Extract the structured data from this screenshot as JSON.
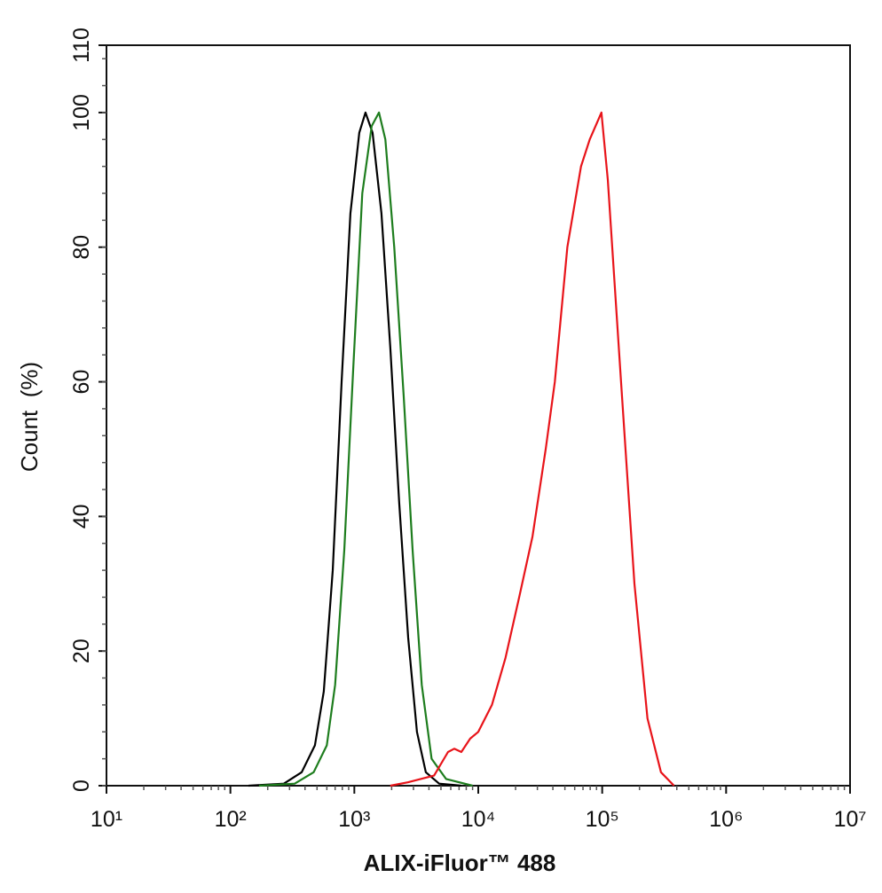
{
  "chart_data": {
    "type": "line",
    "x_label": "ALIX-iFluor™ 488",
    "y_label": "Count  (%)",
    "x_log": true,
    "xlim": [
      10,
      10000000
    ],
    "xticks": [
      {
        "value": 10,
        "label": "10¹"
      },
      {
        "value": 100,
        "label": "10²"
      },
      {
        "value": 1000,
        "label": "10³"
      },
      {
        "value": 10000,
        "label": "10⁴"
      },
      {
        "value": 100000,
        "label": "10⁵"
      },
      {
        "value": 1000000,
        "label": "10⁶"
      },
      {
        "value": 10000000,
        "label": "10⁷"
      }
    ],
    "ylim": [
      0,
      110
    ],
    "yticks": [
      0,
      20,
      40,
      60,
      80,
      100,
      110
    ],
    "series": [
      {
        "color": "#000000",
        "x": [
          140,
          270,
          376,
          481,
          567,
          669,
          789,
          930,
          1096,
          1230,
          1403,
          1656,
          1953,
          2303,
          2717,
          3200,
          3775,
          4833,
          7300
        ],
        "values": [
          0,
          0.3,
          2,
          6,
          14,
          32,
          60,
          85,
          97,
          100,
          97,
          85,
          65,
          42,
          22,
          8,
          2,
          0.3,
          0
        ]
      },
      {
        "color": "#1e7d1e",
        "x": [
          170,
          330,
          470,
          600,
          700,
          830,
          980,
          1160,
          1380,
          1580,
          1780,
          2100,
          2500,
          2950,
          3500,
          4200,
          5500,
          9000
        ],
        "values": [
          0,
          0.3,
          2,
          6,
          15,
          35,
          62,
          88,
          98,
          100,
          96,
          80,
          58,
          35,
          15,
          4,
          1,
          0
        ]
      },
      {
        "color": "#e8141a",
        "x": [
          1950,
          2700,
          4400,
          5700,
          6400,
          7300,
          8600,
          10000,
          12900,
          16600,
          21400,
          27400,
          35000,
          41500,
          52300,
          67500,
          79300,
          98600,
          111000,
          142000,
          182000,
          232000,
          298000,
          380000
        ],
        "values": [
          0,
          0.5,
          1.5,
          5,
          5.5,
          5,
          7,
          8,
          12,
          19,
          28,
          37,
          50,
          60,
          80,
          92,
          96,
          100,
          90,
          60,
          30,
          10,
          2,
          0
        ]
      }
    ]
  }
}
